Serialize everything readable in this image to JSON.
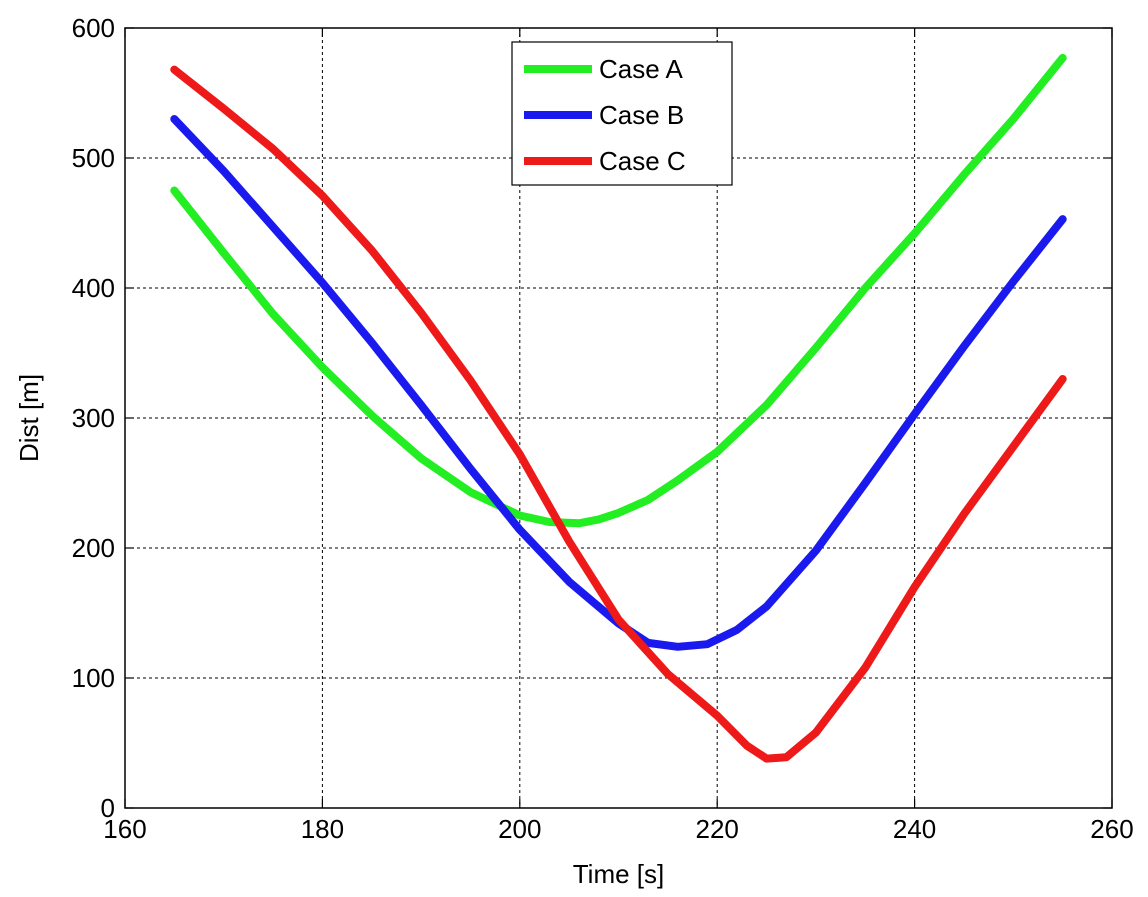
{
  "chart_data": {
    "type": "line",
    "xlabel": "Time [s]",
    "ylabel": "Dist [m]",
    "xlim": [
      160,
      260
    ],
    "ylim": [
      0,
      600
    ],
    "xticks": [
      160,
      180,
      200,
      220,
      240,
      260
    ],
    "yticks": [
      0,
      100,
      200,
      300,
      400,
      500,
      600
    ],
    "grid": true,
    "legend_position": "top-center",
    "series": [
      {
        "name": "Case A",
        "color": "#22ee22",
        "x": [
          165,
          170,
          175,
          180,
          185,
          190,
          195,
          200,
          203,
          206,
          208,
          210,
          213,
          216,
          220,
          225,
          230,
          235,
          240,
          245,
          250,
          255
        ],
        "y": [
          475,
          427,
          380,
          339,
          302,
          269,
          243,
          225,
          220,
          219,
          222,
          227,
          237,
          252,
          274,
          310,
          354,
          400,
          442,
          487,
          530,
          577
        ]
      },
      {
        "name": "Case B",
        "color": "#1a1aee",
        "x": [
          165,
          170,
          175,
          180,
          185,
          190,
          195,
          200,
          205,
          210,
          213,
          216,
          219,
          222,
          225,
          230,
          235,
          240,
          245,
          250,
          255
        ],
        "y": [
          530,
          490,
          447,
          404,
          358,
          310,
          261,
          214,
          174,
          142,
          127,
          124,
          126,
          137,
          155,
          198,
          250,
          303,
          355,
          405,
          453
        ]
      },
      {
        "name": "Case C",
        "color": "#ee1a1a",
        "x": [
          165,
          170,
          175,
          180,
          185,
          190,
          195,
          200,
          205,
          210,
          215,
          220,
          223,
          225,
          227,
          230,
          235,
          240,
          245,
          250,
          255
        ],
        "y": [
          568,
          538,
          507,
          471,
          429,
          381,
          329,
          272,
          205,
          145,
          103,
          71,
          48,
          38,
          39,
          58,
          108,
          170,
          226,
          278,
          330
        ]
      }
    ]
  }
}
